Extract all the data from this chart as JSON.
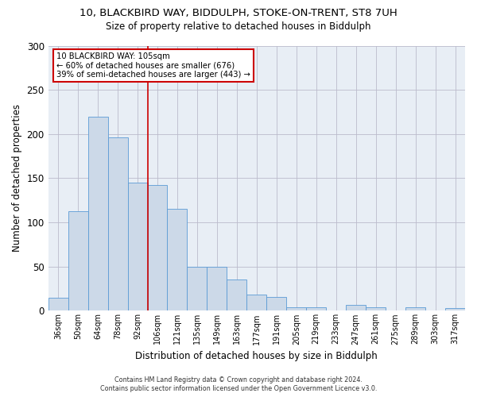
{
  "title_line1": "10, BLACKBIRD WAY, BIDDULPH, STOKE-ON-TRENT, ST8 7UH",
  "title_line2": "Size of property relative to detached houses in Biddulph",
  "xlabel": "Distribution of detached houses by size in Biddulph",
  "ylabel": "Number of detached properties",
  "categories": [
    "36sqm",
    "50sqm",
    "64sqm",
    "78sqm",
    "92sqm",
    "106sqm",
    "121sqm",
    "135sqm",
    "149sqm",
    "163sqm",
    "177sqm",
    "191sqm",
    "205sqm",
    "219sqm",
    "233sqm",
    "247sqm",
    "261sqm",
    "275sqm",
    "289sqm",
    "303sqm",
    "317sqm"
  ],
  "values": [
    15,
    113,
    220,
    196,
    145,
    142,
    115,
    50,
    50,
    35,
    18,
    16,
    4,
    4,
    0,
    7,
    4,
    0,
    4,
    0,
    3
  ],
  "bar_color": "#ccd9e8",
  "bar_edge_color": "#5b9bd5",
  "grid_color": "#bbbbcc",
  "annotation_text_line1": "10 BLACKBIRD WAY: 105sqm",
  "annotation_text_line2": "← 60% of detached houses are smaller (676)",
  "annotation_text_line3": "39% of semi-detached houses are larger (443) →",
  "annotation_box_color": "#ffffff",
  "annotation_box_edge": "#cc0000",
  "vline_color": "#cc0000",
  "vline_x_index": 4.5,
  "footer_line1": "Contains HM Land Registry data © Crown copyright and database right 2024.",
  "footer_line2": "Contains public sector information licensed under the Open Government Licence v3.0.",
  "ylim": [
    0,
    300
  ],
  "yticks": [
    0,
    50,
    100,
    150,
    200,
    250,
    300
  ],
  "bg_color": "#e8eef5"
}
